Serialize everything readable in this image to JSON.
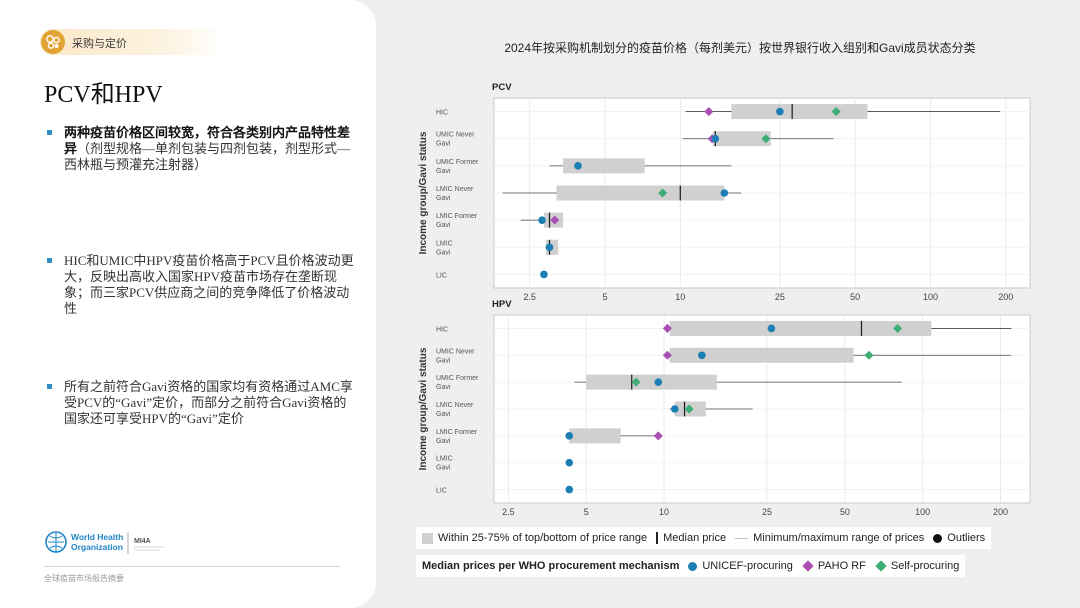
{
  "header": {
    "section_label": "采购与定价"
  },
  "slide_title": "PCV和HPV",
  "bullets": [
    {
      "bold": "两种疫苗价格区间较宽，符合各类别内产品特性差异",
      "normal": "（剂型规格—单剂包装与四剂包装，剂型形式—西林瓶与预灌充注射器）"
    },
    {
      "bold": "",
      "normal": "HIC和UMIC中HPV疫苗价格高于PCV且价格波动更大，反映出高收入国家HPV疫苗市场存在垄断现象；而三家PCV供应商之间的竞争降低了价格波动性"
    },
    {
      "bold": "",
      "normal": "所有之前符合Gavi资格的国家均有资格通过AMC享受PCV的“Gavi”定价，而部分之前符合Gavi资格的国家还可享受HPV的“Gavi”定价"
    }
  ],
  "logos": {
    "who_line1": "World Health",
    "who_line2": "Organization",
    "mi4a": "MI4A"
  },
  "footer": "全球疫苗市场报告摘要",
  "chart_title": "2024年按采购机制划分的疫苗价格（每剂美元）按世界银行收入组别和Gavi成员状态分类",
  "colors": {
    "unicef": "#1b7fb4",
    "paho": "#a94fb3",
    "self": "#3fae76",
    "box": "#d0d0d0",
    "range": "#444444",
    "median": "#1a1a1a"
  },
  "chart_data": [
    {
      "type": "box-range",
      "title": "PCV",
      "ylabel": "Income group/Gavi status",
      "xscale": "log",
      "xlim": [
        1.8,
        250
      ],
      "xticks": [
        2.5,
        5,
        10,
        25,
        50,
        100,
        200
      ],
      "categories": [
        "HIC",
        "UMIC Never Gavi",
        "UMIC Former Gavi",
        "LMIC Never Gavi",
        "LMIC Former Gavi",
        "LMIC Gavi",
        "LIC"
      ],
      "rows": [
        {
          "min": 10.5,
          "box": [
            16,
            56
          ],
          "median": 28,
          "max": 190,
          "unicef": 25,
          "paho": 13,
          "self": 42
        },
        {
          "min": 10.2,
          "box": [
            13.5,
            23
          ],
          "median": 13.8,
          "max": 41,
          "unicef": 13.8,
          "paho": 13.4,
          "self": 22
        },
        {
          "min": 3.0,
          "box": [
            3.4,
            7.2
          ],
          "median": null,
          "max": 16,
          "unicef": 3.9,
          "paho": null,
          "self": null
        },
        {
          "min": 1.95,
          "box": [
            3.2,
            15
          ],
          "median": 10,
          "max": 17.5,
          "unicef": 15,
          "paho": null,
          "self": 8.5
        },
        {
          "min": 2.3,
          "box": [
            2.85,
            3.4
          ],
          "median": 3.0,
          "max": 3.4,
          "unicef": 2.8,
          "paho": 3.15,
          "self": null
        },
        {
          "min": 2.9,
          "box": [
            2.9,
            3.25
          ],
          "median": 3.0,
          "max": 3.25,
          "unicef": 3.0,
          "paho": null,
          "self": null
        },
        {
          "min": null,
          "box": null,
          "median": null,
          "max": null,
          "unicef": 2.85,
          "paho": null,
          "self": null
        }
      ]
    },
    {
      "type": "box-range",
      "title": "HPV",
      "ylabel": "Income group/Gavi status",
      "xscale": "log",
      "xlim": [
        2.2,
        260
      ],
      "xticks": [
        2.5,
        5,
        10,
        25,
        50,
        100,
        200
      ],
      "categories": [
        "HIC",
        "UMIC Never Gavi",
        "UMIC Former Gavi",
        "LMIC Never Gavi",
        "LMIC Former Gavi",
        "LMIC Gavi",
        "LIC"
      ],
      "rows": [
        {
          "min": null,
          "box": [
            10.5,
            108
          ],
          "median": 58,
          "max": 220,
          "unicef": 26,
          "paho": 10.3,
          "self": 80
        },
        {
          "min": null,
          "box": [
            10.5,
            54
          ],
          "median": null,
          "max": 220,
          "unicef": 14,
          "paho": 10.3,
          "self": 62
        },
        {
          "min": 4.5,
          "box": [
            5.0,
            16
          ],
          "median": 7.5,
          "max": 83,
          "unicef": 9.5,
          "paho": null,
          "self": 7.8
        },
        {
          "min": 10.5,
          "box": [
            11,
            14.5
          ],
          "median": 12,
          "max": 22,
          "unicef": 11,
          "paho": null,
          "self": 12.5
        },
        {
          "min": null,
          "box": [
            4.3,
            6.8
          ],
          "median": null,
          "max": 9.5,
          "unicef": 4.3,
          "paho": 9.5,
          "self": null
        },
        {
          "min": null,
          "box": null,
          "median": null,
          "max": null,
          "unicef": 4.3,
          "paho": null,
          "self": null
        },
        {
          "min": null,
          "box": null,
          "median": null,
          "max": null,
          "unicef": 4.3,
          "paho": null,
          "self": null
        }
      ]
    }
  ],
  "legend1": {
    "box": "Within 25-75% of top/bottom of price range",
    "median": "Median price",
    "range": "Minimum/maximum range of prices",
    "outliers": "Outliers"
  },
  "legend2": {
    "title": "Median prices per WHO procurement mechanism",
    "unicef": "UNICEF-procuring",
    "paho": "PAHO RF",
    "self": "Self-procuring"
  }
}
